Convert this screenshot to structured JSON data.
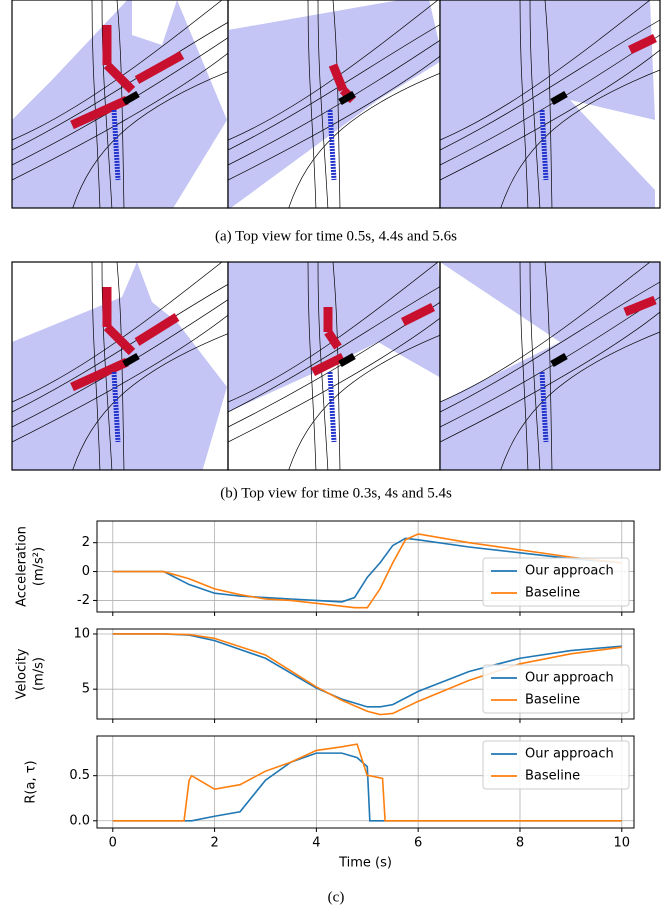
{
  "captions": {
    "a": "(a) Top view for time 0.5s, 4.4s and 5.6s",
    "b": "(b) Top view for time 0.3s, 4s and 5.4s",
    "c": "(c)"
  },
  "chart_data": [
    {
      "type": "line",
      "ylabel": [
        "Acceleration",
        "(m/s²)"
      ],
      "x": [
        0,
        1,
        1.5,
        2,
        2.5,
        3,
        3.5,
        4,
        4.5,
        4.75,
        5,
        5.25,
        5.5,
        5.75,
        6,
        7,
        8,
        9,
        10
      ],
      "series": [
        {
          "name": "Our approach",
          "color": "#1f77b4",
          "values": [
            0,
            0,
            -0.9,
            -1.5,
            -1.7,
            -1.8,
            -1.9,
            -2.0,
            -2.1,
            -1.8,
            -0.4,
            0.6,
            1.8,
            2.3,
            2.2,
            1.7,
            1.3,
            0.9,
            0.6
          ]
        },
        {
          "name": "Baseline",
          "color": "#ff7f0e",
          "values": [
            0,
            0,
            -0.5,
            -1.2,
            -1.6,
            -1.9,
            -2.0,
            -2.2,
            -2.4,
            -2.5,
            -2.5,
            -1.2,
            0.6,
            2.2,
            2.6,
            2.0,
            1.5,
            1.0,
            0.6
          ]
        }
      ],
      "xlim": [
        -0.31,
        10.24
      ],
      "xticks": [
        0,
        2,
        4,
        6,
        8,
        10
      ],
      "ylim": [
        -2.8,
        3.5
      ],
      "yticks": [
        -2,
        0,
        2
      ],
      "grid": true,
      "legend": "lower right"
    },
    {
      "type": "line",
      "ylabel": [
        "Velocity",
        "(m/s)"
      ],
      "x": [
        0,
        1,
        1.5,
        2,
        3,
        4,
        4.5,
        5,
        5.25,
        5.5,
        6,
        7,
        8,
        9,
        10
      ],
      "series": [
        {
          "name": "Our approach",
          "color": "#1f77b4",
          "values": [
            10,
            10,
            9.9,
            9.4,
            7.8,
            5.1,
            4.1,
            3.4,
            3.4,
            3.6,
            4.8,
            6.6,
            7.8,
            8.5,
            8.9
          ]
        },
        {
          "name": "Baseline",
          "color": "#ff7f0e",
          "values": [
            10,
            10,
            9.95,
            9.6,
            8.1,
            5.2,
            4.0,
            3.0,
            2.7,
            2.8,
            3.9,
            5.8,
            7.3,
            8.2,
            8.8
          ]
        }
      ],
      "xlim": [
        -0.31,
        10.24
      ],
      "xticks": [
        0,
        2,
        4,
        6,
        8,
        10
      ],
      "ylim": [
        2.3,
        10.45
      ],
      "yticks": [
        5,
        10
      ],
      "grid": true,
      "legend": "lower right"
    },
    {
      "type": "line",
      "ylabel": [
        "R(a, τ)"
      ],
      "xlabel": "Time (s)",
      "x": [
        0,
        1.4,
        1.5,
        1.55,
        2,
        2.5,
        3,
        3.5,
        4,
        4.5,
        4.8,
        5,
        5.05,
        5.3,
        5.35,
        5.5,
        10
      ],
      "series": [
        {
          "name": "Our approach",
          "color": "#1f77b4",
          "values": [
            0,
            0,
            0,
            0,
            0.05,
            0.1,
            0.45,
            0.65,
            0.75,
            0.75,
            0.7,
            0.6,
            0,
            0,
            0,
            0,
            0
          ]
        },
        {
          "name": "Baseline",
          "color": "#ff7f0e",
          "values": [
            0,
            0,
            0.45,
            0.5,
            0.35,
            0.4,
            0.55,
            0.65,
            0.78,
            0.82,
            0.85,
            0.5,
            0.5,
            0.47,
            0,
            0,
            0
          ]
        }
      ],
      "xlim": [
        -0.31,
        10.24
      ],
      "xticks": [
        0,
        2,
        4,
        6,
        8,
        10
      ],
      "ylim": [
        -0.08,
        0.94
      ],
      "yticks": [
        {
          "value": 0,
          "label": "0.0"
        },
        {
          "value": 0.5,
          "label": "0.5"
        }
      ],
      "grid": true,
      "legend": "upper right"
    }
  ]
}
